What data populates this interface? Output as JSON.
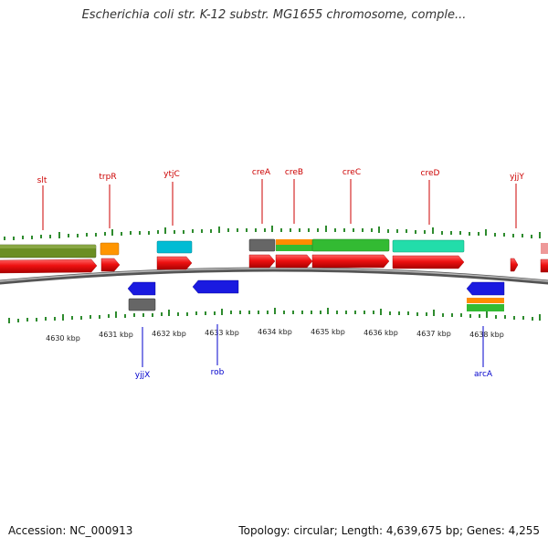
{
  "title": "Escherichia coli str. K-12 substr. MG1655 chromosome, comple...",
  "footer": {
    "accession": "Accession: NC_000913",
    "topology": "Topology: circular; Length: 4,639,675 bp; Genes: 4,255"
  },
  "ruler": {
    "ticks": [
      "4630 kbp",
      "4631 kbp",
      "4632 kbp",
      "4633 kbp",
      "4634 kbp",
      "4635 kbp",
      "4636 kbp",
      "4637 kbp",
      "4638 kbp"
    ]
  },
  "genes": {
    "forward": [
      "slt",
      "trpR",
      "ytjC",
      "creA",
      "creB",
      "creC",
      "creD",
      "yjjY"
    ],
    "reverse": [
      "yjjX",
      "rob",
      "arcA"
    ]
  },
  "colors": {
    "forward_label": "#cc0000",
    "reverse_label": "#0000cc",
    "cds_forward": "#ee1111",
    "cds_reverse": "#1111dd",
    "green_olive": "#6b8e23",
    "orange": "#ff8c00",
    "cyan": "#00bcd4",
    "gray": "#666666",
    "green": "#33bb33",
    "mint": "#22ddaa",
    "tick_green": "#2e8b2e",
    "backbone": "#777777"
  }
}
